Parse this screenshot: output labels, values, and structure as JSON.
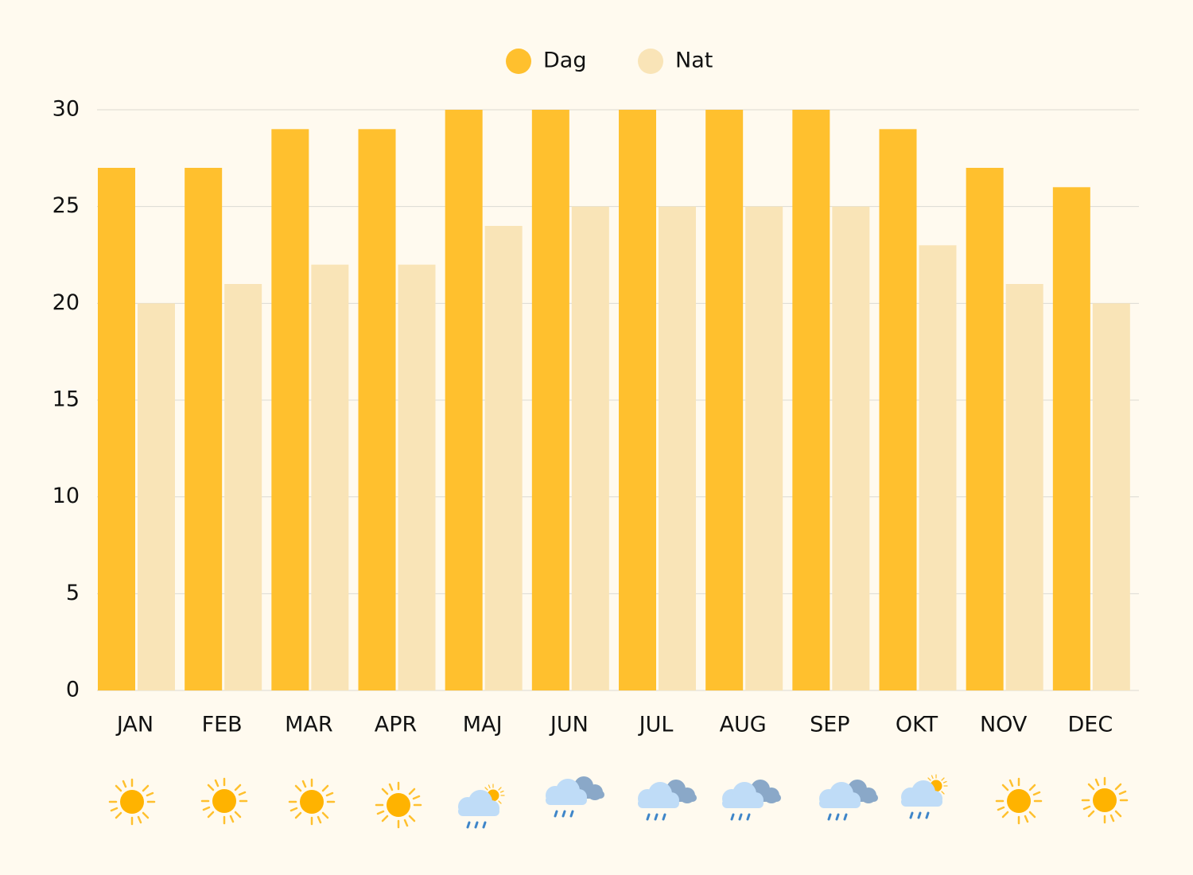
{
  "chart_data": {
    "type": "bar",
    "categories": [
      "JAN",
      "FEB",
      "MAR",
      "APR",
      "MAJ",
      "JUN",
      "JUL",
      "AUG",
      "SEP",
      "OKT",
      "NOV",
      "DEC"
    ],
    "series": [
      {
        "name": "Dag",
        "color": "#ffc02e",
        "values": [
          27,
          27,
          29,
          29,
          30,
          30,
          30,
          30,
          30,
          29,
          27,
          26
        ]
      },
      {
        "name": "Nat",
        "color": "#f9e4b7",
        "values": [
          20,
          21,
          22,
          22,
          24,
          25,
          25,
          25,
          25,
          23,
          21,
          20
        ]
      }
    ],
    "ylim": [
      0,
      30
    ],
    "yticks": [
      0,
      5,
      10,
      15,
      20,
      25,
      30
    ],
    "grid": true,
    "legend": "top"
  }
}
